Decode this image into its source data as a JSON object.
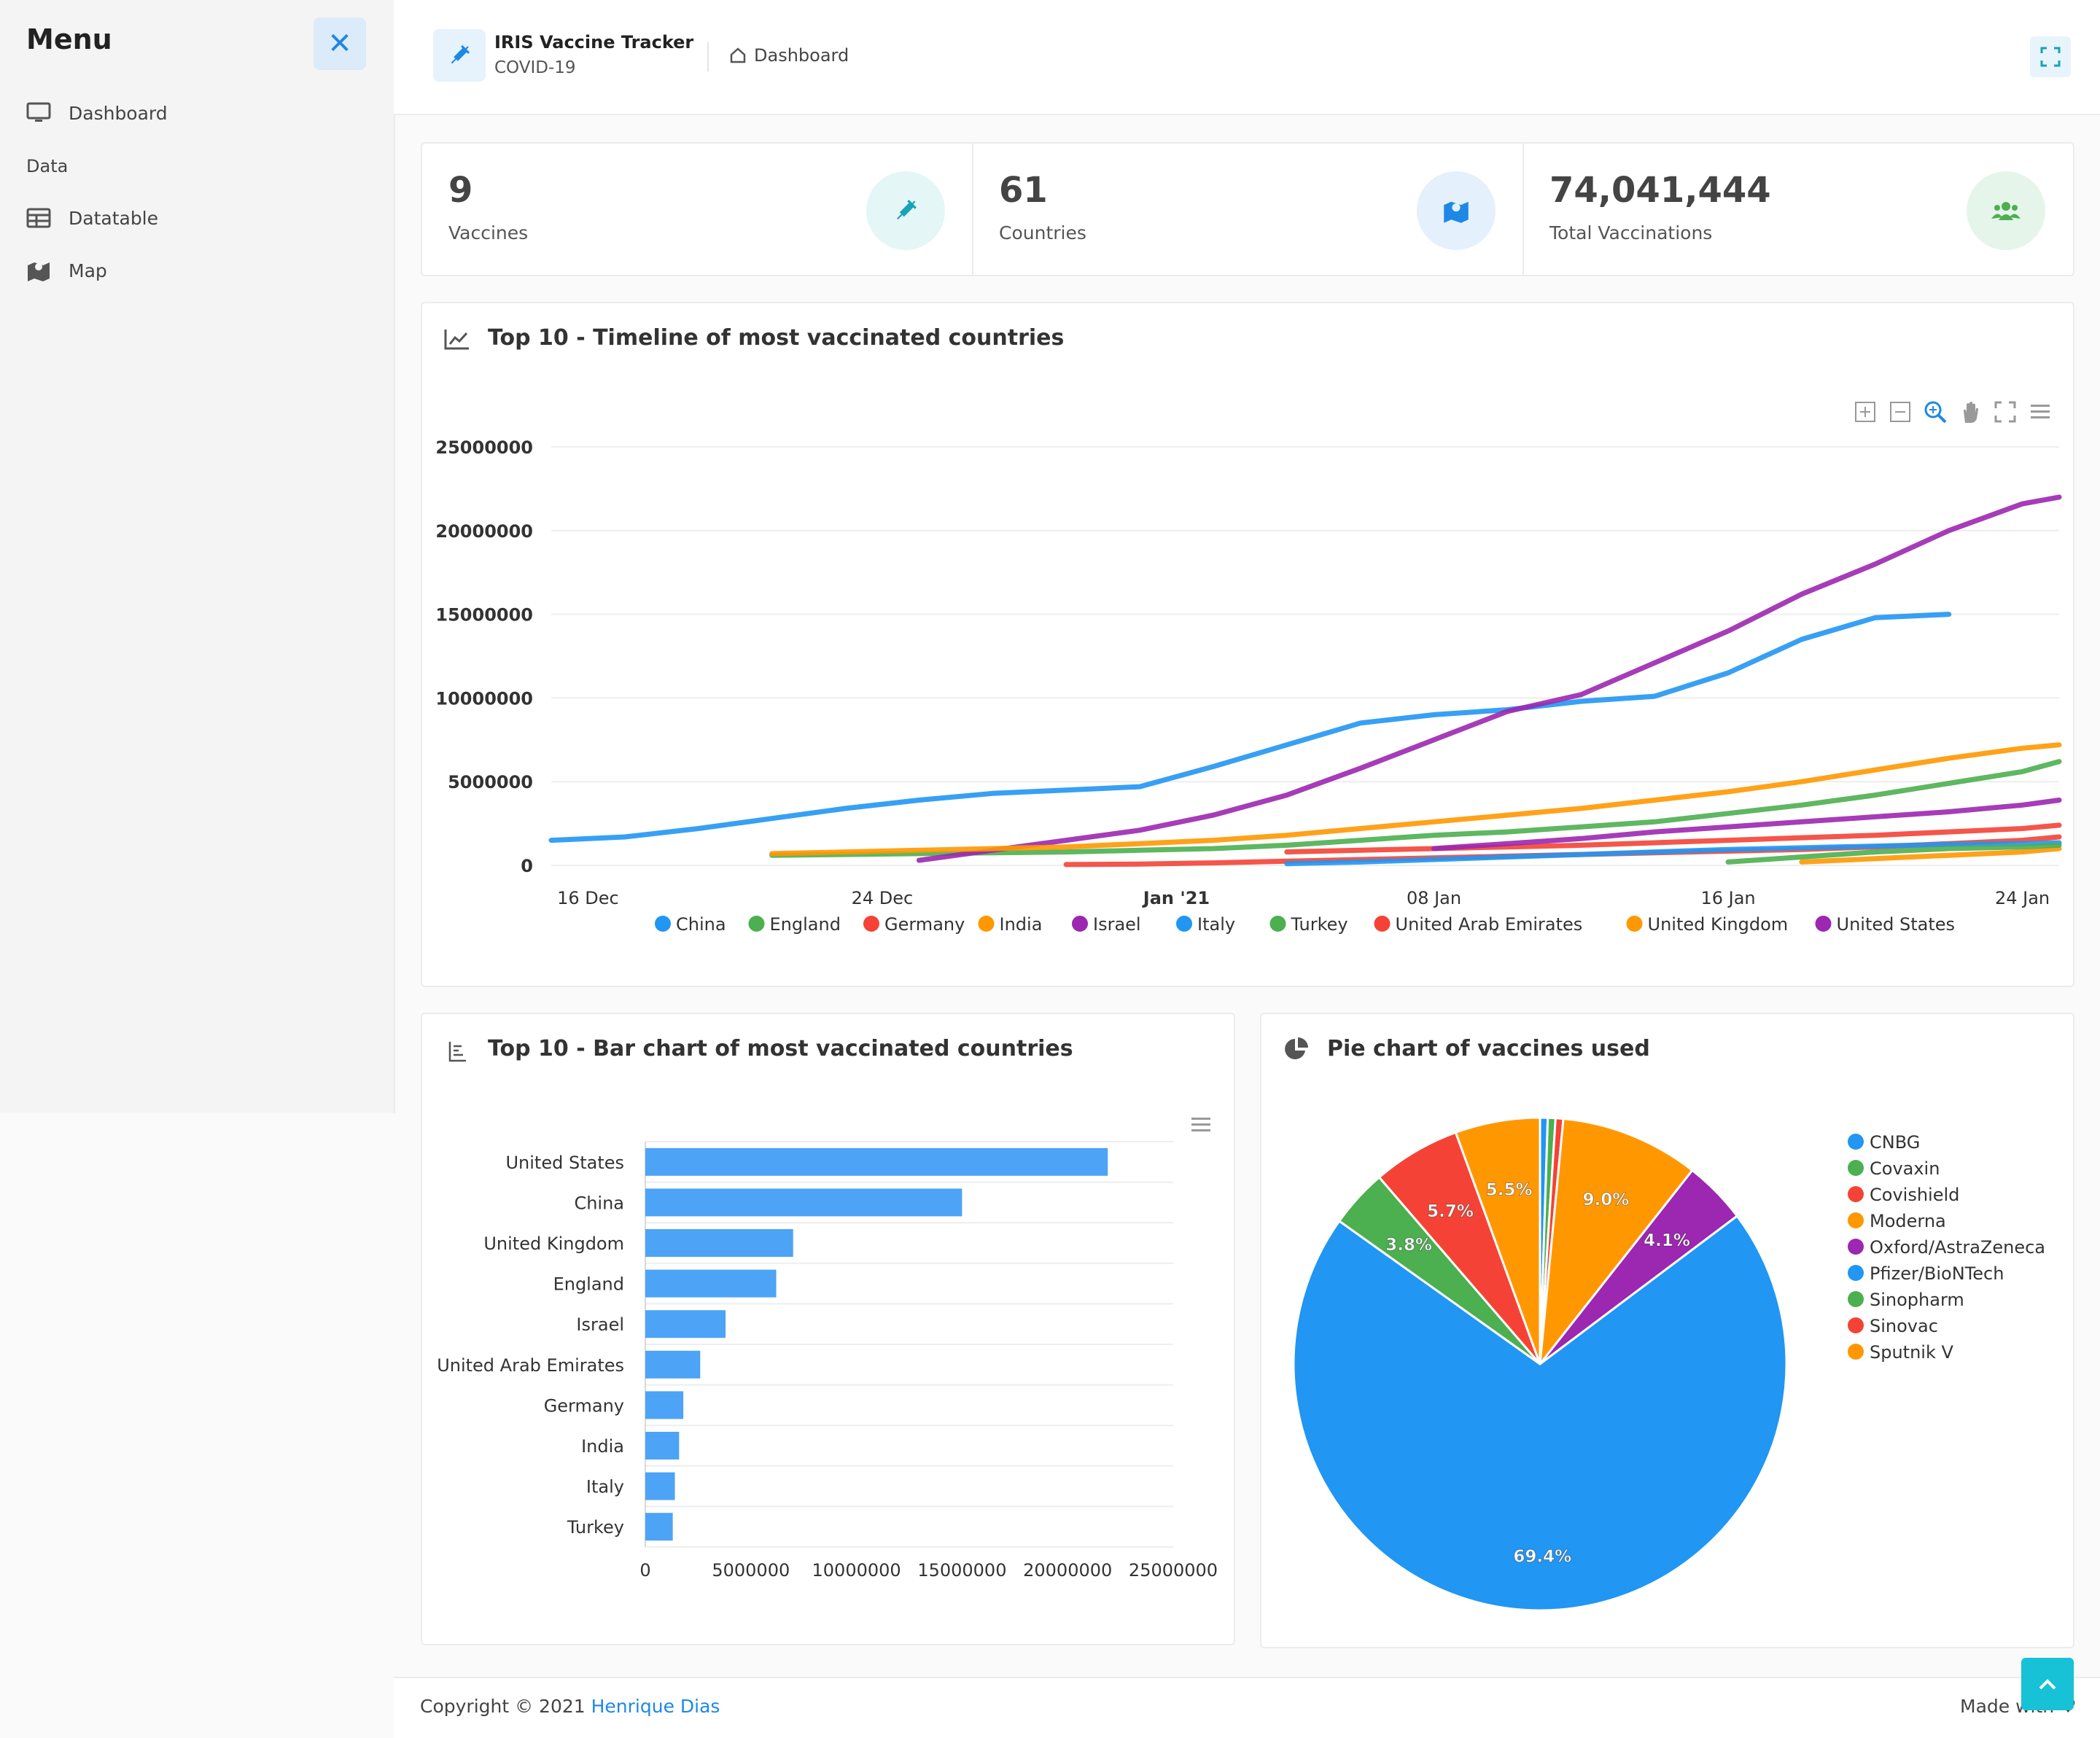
{
  "sidebar": {
    "title": "Menu",
    "items": [
      {
        "label": "Dashboard"
      },
      {
        "label": "Datatable"
      },
      {
        "label": "Map"
      }
    ],
    "section": "Data"
  },
  "header": {
    "app_name": "IRIS Vaccine Tracker",
    "app_sub": "COVID-19",
    "breadcrumb": "Dashboard"
  },
  "stats": [
    {
      "value": "9",
      "label": "Vaccines",
      "icon": "syringe-icon"
    },
    {
      "value": "61",
      "label": "Countries",
      "icon": "map-marker-icon"
    },
    {
      "value": "74,041,444",
      "label": "Total Vaccinations",
      "icon": "users-icon"
    }
  ],
  "timeline": {
    "title": "Top 10 - Timeline of most vaccinated countries"
  },
  "bar": {
    "title": "Top 10 - Bar chart of most vaccinated countries"
  },
  "pie": {
    "title": "Pie chart of vaccines used"
  },
  "footer": {
    "copyright": "Copyright © 2021 ",
    "author": "Henrique Dias",
    "made": "Made with ♥"
  },
  "colors": {
    "blue": "#2196f3",
    "green": "#4caf50",
    "red": "#f44336",
    "orange": "#ff9800",
    "purple": "#9c27b0"
  },
  "chart_data": [
    {
      "type": "line",
      "ylim": [
        0,
        25000000
      ],
      "yticks": [
        "25000000",
        "20000000",
        "15000000",
        "10000000",
        "5000000",
        "0"
      ],
      "xticks": [
        "16 Dec",
        "24 Dec",
        "Jan '21",
        "08 Jan",
        "16 Jan",
        "24 Jan"
      ],
      "x": [
        "2020-12-15",
        "2020-12-17",
        "2020-12-19",
        "2020-12-21",
        "2020-12-23",
        "2020-12-25",
        "2020-12-27",
        "2020-12-29",
        "2020-12-31",
        "2021-01-02",
        "2021-01-04",
        "2021-01-06",
        "2021-01-08",
        "2021-01-10",
        "2021-01-12",
        "2021-01-14",
        "2021-01-16",
        "2021-01-18",
        "2021-01-20",
        "2021-01-22",
        "2021-01-24",
        "2021-01-25"
      ],
      "series": [
        {
          "name": "China",
          "color": "#2196f3",
          "values": [
            1500000,
            1700000,
            2200000,
            2800000,
            3400000,
            3900000,
            4300000,
            4500000,
            4700000,
            5900000,
            7200000,
            8500000,
            9000000,
            9300000,
            9800000,
            10100000,
            11500000,
            13500000,
            14800000,
            15000000,
            null,
            null
          ]
        },
        {
          "name": "England",
          "color": "#4caf50",
          "values": [
            null,
            null,
            null,
            600000,
            650000,
            700000,
            750000,
            800000,
            900000,
            1000000,
            1200000,
            1500000,
            1800000,
            2000000,
            2300000,
            2600000,
            3100000,
            3600000,
            4200000,
            4900000,
            5600000,
            6200000
          ]
        },
        {
          "name": "Germany",
          "color": "#f44336",
          "values": [
            null,
            null,
            null,
            null,
            null,
            null,
            null,
            50000,
            80000,
            150000,
            250000,
            350000,
            450000,
            550000,
            650000,
            750000,
            850000,
            950000,
            1100000,
            1300000,
            1500000,
            1700000
          ]
        },
        {
          "name": "India",
          "color": "#ff9800",
          "values": [
            null,
            null,
            null,
            null,
            null,
            null,
            null,
            null,
            null,
            null,
            null,
            null,
            null,
            null,
            null,
            null,
            null,
            200000,
            400000,
            600000,
            800000,
            1000000
          ]
        },
        {
          "name": "Israel",
          "color": "#9c27b0",
          "values": [
            null,
            null,
            null,
            null,
            null,
            300000,
            900000,
            1500000,
            2100000,
            3000000,
            4200000,
            5800000,
            7500000,
            9200000,
            10200000,
            12100000,
            14000000,
            16200000,
            18000000,
            20000000,
            21600000,
            22000000
          ]
        },
        {
          "name": "Italy",
          "color": "#2196f3",
          "values": [
            null,
            null,
            null,
            null,
            null,
            null,
            null,
            null,
            null,
            null,
            100000,
            200000,
            350000,
            500000,
            650000,
            800000,
            950000,
            1050000,
            1150000,
            1250000,
            1300000,
            1350000
          ]
        },
        {
          "name": "Turkey",
          "color": "#4caf50",
          "values": [
            null,
            null,
            null,
            null,
            null,
            null,
            null,
            null,
            null,
            null,
            null,
            null,
            null,
            null,
            null,
            null,
            200000,
            500000,
            800000,
            1000000,
            1100000,
            1200000
          ]
        },
        {
          "name": "United Arab Emirates",
          "color": "#f44336",
          "values": [
            null,
            null,
            null,
            null,
            null,
            null,
            null,
            null,
            null,
            null,
            800000,
            900000,
            1000000,
            1100000,
            1200000,
            1350000,
            1500000,
            1650000,
            1800000,
            2000000,
            2200000,
            2400000
          ]
        },
        {
          "name": "United Kingdom",
          "color": "#ff9800",
          "values": [
            null,
            null,
            null,
            700000,
            800000,
            900000,
            1000000,
            1100000,
            1300000,
            1500000,
            1800000,
            2200000,
            2600000,
            3000000,
            3400000,
            3900000,
            4400000,
            5000000,
            5700000,
            6400000,
            7000000,
            7200000
          ]
        },
        {
          "name": "United States",
          "color": "#9c27b0",
          "values": [
            null,
            null,
            null,
            null,
            null,
            null,
            null,
            null,
            null,
            null,
            null,
            null,
            1000000,
            1300000,
            1600000,
            2000000,
            2300000,
            2600000,
            2900000,
            3200000,
            3600000,
            3900000
          ]
        }
      ]
    },
    {
      "type": "bar",
      "categories": [
        "United States",
        "China",
        "United Kingdom",
        "England",
        "Israel",
        "United Arab Emirates",
        "Germany",
        "India",
        "Italy",
        "Turkey"
      ],
      "values": [
        21900000,
        15000000,
        7000000,
        6200000,
        3800000,
        2600000,
        1800000,
        1600000,
        1400000,
        1300000
      ],
      "xlim": [
        0,
        25000000
      ],
      "xticks": [
        "0",
        "5000000",
        "10000000",
        "15000000",
        "20000000",
        "25000000"
      ]
    },
    {
      "type": "pie",
      "labels": [
        "CNBG",
        "Covaxin",
        "Covishield",
        "Moderna",
        "Oxford/AstraZeneca",
        "Pfizer/BioNTech",
        "Sinopharm",
        "Sinovac",
        "Sputnik V"
      ],
      "values": [
        0.5,
        0.5,
        0.5,
        9.0,
        4.1,
        69.4,
        3.8,
        5.7,
        5.5
      ],
      "colors": [
        "#2196f3",
        "#4caf50",
        "#f44336",
        "#ff9800",
        "#9c27b0",
        "#2196f3",
        "#4caf50",
        "#f44336",
        "#ff9800"
      ],
      "data_labels": [
        "",
        "",
        "",
        "9.0%",
        "4.1%",
        "69.4%",
        "3.8%",
        "5.7%",
        "5.5%"
      ]
    }
  ]
}
